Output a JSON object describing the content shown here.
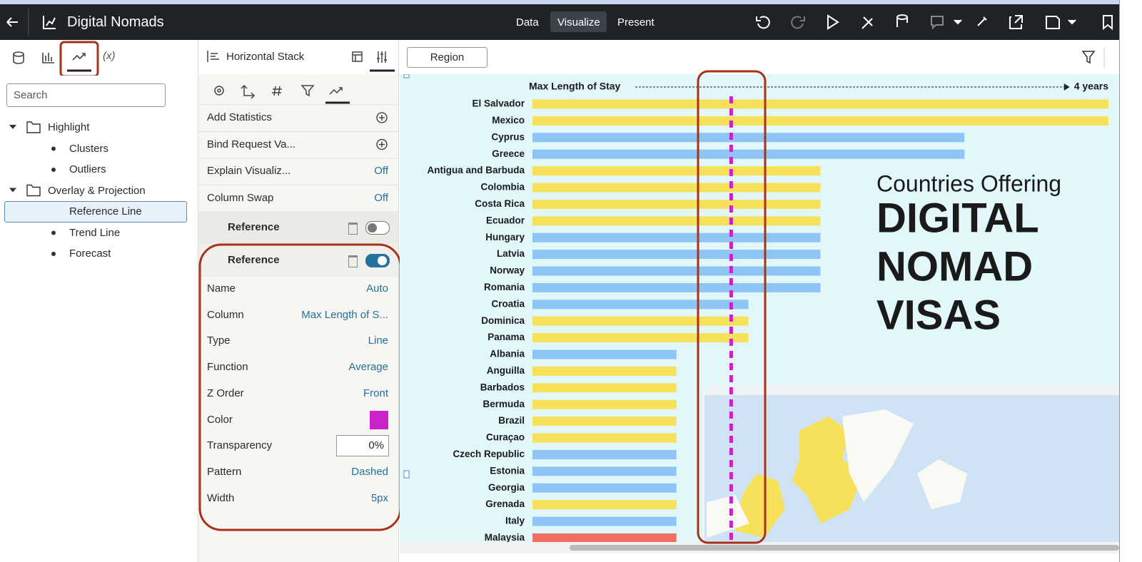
{
  "header": {
    "title": "Digital Nomads",
    "tabs": [
      "Data",
      "Visualize",
      "Present"
    ]
  },
  "left_panel": {
    "tab_label": "(x)",
    "search_placeholder": "Search",
    "tree": [
      {
        "label": "Highlight",
        "children": [
          "Clusters",
          "Outliers"
        ]
      },
      {
        "label": "Overlay & Projection",
        "children": [
          "Reference Line",
          "Trend Line",
          "Forecast"
        ]
      }
    ]
  },
  "properties": {
    "title": "Horizontal Stack",
    "rows": [
      {
        "label": "Add Statistics"
      },
      {
        "label": "Bind Request Va..."
      },
      {
        "label": "Explain Visualiz...",
        "value": "Off"
      },
      {
        "label": "Column Swap",
        "value": "Off"
      }
    ],
    "sections": [
      "Reference",
      "Reference"
    ],
    "reference_settings": [
      {
        "label": "Name",
        "value": "Auto"
      },
      {
        "label": "Column",
        "value": "Max Length of S..."
      },
      {
        "label": "Type",
        "value": "Line"
      },
      {
        "label": "Function",
        "value": "Average"
      },
      {
        "label": "Z Order",
        "value": "Front"
      },
      {
        "label": "Color",
        "color": "#cc22cc"
      },
      {
        "label": "Transparency",
        "value": "0%"
      },
      {
        "label": "Pattern",
        "value": "Dashed"
      },
      {
        "label": "Width",
        "value": "5px"
      }
    ]
  },
  "canvas": {
    "filter_button": "Region"
  },
  "chart_data": {
    "type": "bar",
    "orientation": "horizontal",
    "x_label": "Max Length of Stay",
    "categories": [
      "El Salvador",
      "Mexico",
      "Cyprus",
      "Greece",
      "Antigua and Barbuda",
      "Colombia",
      "Costa Rica",
      "Ecuador",
      "Hungary",
      "Latvia",
      "Norway",
      "Romania",
      "Croatia",
      "Dominica",
      "Panama",
      "Albania",
      "Anguilla",
      "Barbados",
      "Bermuda",
      "Brazil",
      "Curaçao",
      "Czech Republic",
      "Estonia",
      "Georgia",
      "Grenada",
      "Italy",
      "Malaysia"
    ],
    "values": [
      4,
      4,
      3,
      3,
      2,
      2,
      2,
      2,
      2,
      2,
      2,
      2,
      1.5,
      1.5,
      1.5,
      1,
      1,
      1,
      1,
      1,
      1,
      1,
      1,
      1,
      1,
      1,
      1
    ],
    "colors": [
      "#f7e15b",
      "#f7e15b",
      "#8ec5f5",
      "#8ec5f5",
      "#f7e15b",
      "#f7e15b",
      "#f7e15b",
      "#f7e15b",
      "#8ec5f5",
      "#8ec5f5",
      "#8ec5f5",
      "#8ec5f5",
      "#8ec5f5",
      "#f7e15b",
      "#f7e15b",
      "#8ec5f5",
      "#f7e15b",
      "#f7e15b",
      "#f7e15b",
      "#f7e15b",
      "#f7e15b",
      "#8ec5f5",
      "#8ec5f5",
      "#8ec5f5",
      "#f7e15b",
      "#8ec5f5",
      "#f06e63"
    ],
    "xlim": [
      0,
      4
    ],
    "xticks": [
      {
        "value": 4,
        "label": "4 years"
      }
    ],
    "reference_line": {
      "value": 1.38,
      "color": "#cc22cc"
    },
    "annotation": {
      "line1": "Countries Offering",
      "line2": [
        "DIGITAL",
        "NOMAD",
        "VISAS"
      ]
    }
  }
}
